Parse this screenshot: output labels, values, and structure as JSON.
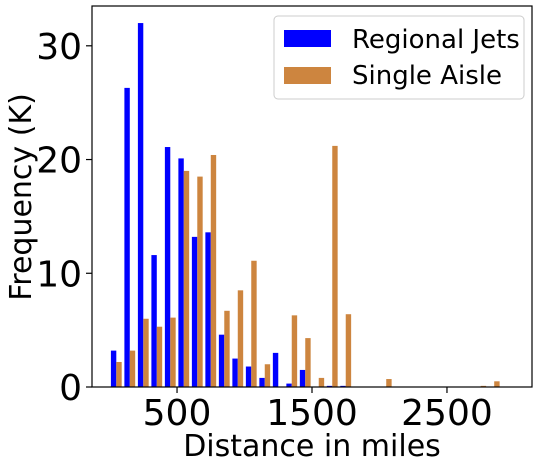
{
  "chart_data": {
    "type": "bar",
    "title": "",
    "xlabel": "Distance in miles",
    "ylabel": "Frequency (K)",
    "xlim": [
      -130,
      3130
    ],
    "ylim": [
      0,
      33.5
    ],
    "x_ticks": [
      500,
      1500,
      2500
    ],
    "x_tick_labels": [
      "500",
      "1500",
      "2500"
    ],
    "y_ticks": [
      0,
      10,
      20,
      30
    ],
    "y_tick_labels": [
      "0",
      "10",
      "20",
      "30"
    ],
    "grid": false,
    "legend_position": "top-right",
    "bin_width": 100,
    "bin_starts": [
      0,
      100,
      200,
      300,
      400,
      500,
      600,
      700,
      800,
      900,
      1000,
      1100,
      1200,
      1300,
      1400,
      1500,
      1600,
      1700,
      1800,
      1900,
      2000,
      2100,
      2200,
      2300,
      2400,
      2500,
      2600,
      2700,
      2800
    ],
    "series": [
      {
        "name": "Regional Jets",
        "color": "#0000ff",
        "values": [
          3.2,
          26.3,
          32.0,
          11.6,
          21.1,
          20.1,
          13.2,
          13.6,
          4.6,
          2.5,
          1.8,
          0.8,
          3.0,
          0.3,
          1.5,
          0,
          0.1,
          0.1,
          0,
          0,
          0,
          0,
          0,
          0,
          0,
          0,
          0,
          0,
          0
        ]
      },
      {
        "name": "Single Aisle",
        "color": "#cd853f",
        "values": [
          2.2,
          3.2,
          6.0,
          5.3,
          6.1,
          19.0,
          18.5,
          20.4,
          6.7,
          8.5,
          11.1,
          2.0,
          0,
          6.3,
          4.3,
          0.8,
          21.2,
          6.4,
          0,
          0,
          0.7,
          0,
          0,
          0,
          0,
          0,
          0,
          0.1,
          0.5
        ]
      }
    ]
  }
}
